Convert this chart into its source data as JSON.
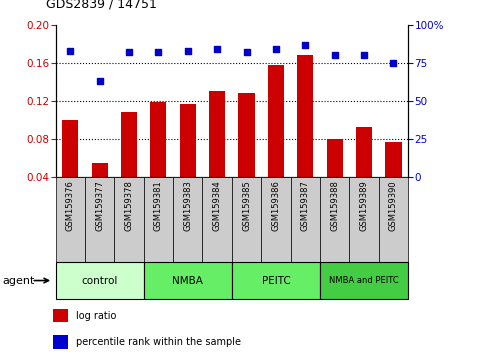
{
  "title": "GDS2839 / 14751",
  "samples": [
    "GSM159376",
    "GSM159377",
    "GSM159378",
    "GSM159381",
    "GSM159383",
    "GSM159384",
    "GSM159385",
    "GSM159386",
    "GSM159387",
    "GSM159388",
    "GSM159389",
    "GSM159390"
  ],
  "log_ratio": [
    0.1,
    0.055,
    0.108,
    0.119,
    0.117,
    0.13,
    0.128,
    0.158,
    0.168,
    0.08,
    0.093,
    0.077
  ],
  "percentile_rank": [
    83,
    63,
    82,
    82,
    83,
    84,
    82,
    84,
    87,
    80,
    80,
    75
  ],
  "bar_color": "#cc0000",
  "dot_color": "#0000cc",
  "ylim_left": [
    0.04,
    0.2
  ],
  "ylim_right": [
    0,
    100
  ],
  "yticks_left": [
    0.04,
    0.08,
    0.12,
    0.16,
    0.2
  ],
  "yticks_right": [
    0,
    25,
    50,
    75,
    100
  ],
  "ytick_labels_right": [
    "0",
    "25",
    "50",
    "75",
    "100%"
  ],
  "groups": [
    {
      "label": "control",
      "start": 0,
      "end": 3,
      "color": "#ccffcc"
    },
    {
      "label": "NMBA",
      "start": 3,
      "end": 6,
      "color": "#66ee66"
    },
    {
      "label": "PEITC",
      "start": 6,
      "end": 9,
      "color": "#66ee66"
    },
    {
      "label": "NMBA and PEITC",
      "start": 9,
      "end": 12,
      "color": "#44cc44"
    }
  ],
  "legend_items": [
    {
      "label": "log ratio",
      "color": "#cc0000"
    },
    {
      "label": "percentile rank within the sample",
      "color": "#0000cc"
    }
  ],
  "agent_label": "agent",
  "tick_label_color_left": "#cc0000",
  "tick_label_color_right": "#0000cc",
  "xticklabel_bg": "#cccccc",
  "grid_lines_at": [
    0.08,
    0.12,
    0.16
  ],
  "bar_bottom": 0.04
}
